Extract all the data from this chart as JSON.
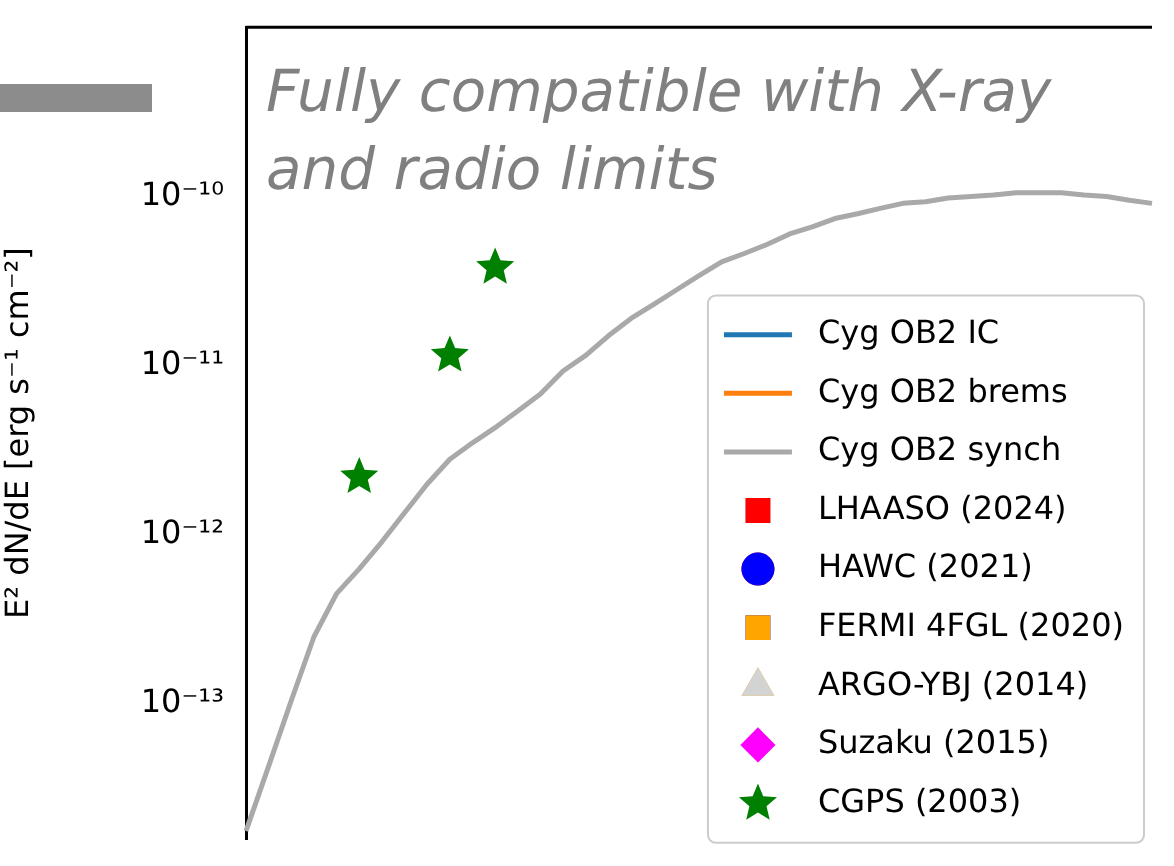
{
  "chart_data": {
    "type": "line",
    "ylabel": "E² dN/dE [erg s⁻¹ cm⁻²]",
    "annotations": [
      "Fully compatible with X-ray\nand radio limits"
    ],
    "categories": [
      null,
      null,
      null,
      null,
      null,
      null,
      null,
      null,
      null,
      null,
      null,
      null,
      null,
      null,
      null,
      null,
      null,
      null,
      null,
      null,
      null,
      null,
      null,
      null,
      null,
      null,
      null,
      null,
      null,
      null,
      null,
      null,
      null,
      null,
      null,
      null,
      null,
      null,
      null,
      null,
      null
    ],
    "log": "y",
    "ylim": [
      1.6e-14,
      1e-09
    ],
    "yticks": [
      {
        "value": 1e-13,
        "label": "10⁻¹³"
      },
      {
        "value": 1e-12,
        "label": "10⁻¹²"
      },
      {
        "value": 1e-11,
        "label": "10⁻¹¹"
      },
      {
        "value": 1e-10,
        "label": "10⁻¹⁰"
      }
    ],
    "tick_labels": "y",
    "grid": false,
    "legend": "bottom right",
    "series": [
      {
        "name": "Cyg OB2 IC",
        "color": "#1f77b4",
        "values": [
          null,
          null,
          null,
          null,
          null,
          null,
          null,
          null,
          null,
          null,
          null,
          null,
          null,
          null,
          null,
          null,
          null,
          null,
          null,
          null,
          null,
          null,
          null,
          null,
          null,
          null,
          null,
          null,
          null,
          null,
          null,
          null,
          null,
          null,
          null,
          null,
          null,
          null,
          null,
          null,
          null
        ]
      },
      {
        "name": "Cyg OB2 brems",
        "color": "#ff7f0e",
        "values": [
          null,
          null,
          null,
          null,
          null,
          null,
          null,
          null,
          null,
          null,
          null,
          null,
          null,
          null,
          null,
          null,
          null,
          null,
          null,
          null,
          null,
          null,
          null,
          null,
          null,
          null,
          null,
          null,
          null,
          null,
          null,
          null,
          null,
          null,
          null,
          null,
          null,
          null,
          null,
          null,
          null
        ]
      },
      {
        "name": "Cyg OB2 synch",
        "color": "#a9a9a9",
        "values": [
          1.78e-14,
          4.3e-14,
          1.05e-13,
          2.5e-13,
          4.5e-13,
          6.3e-13,
          9.1e-13,
          1.35e-12,
          2e-12,
          2.8e-12,
          3.5e-12,
          4.3e-12,
          5.4e-12,
          6.8e-12,
          9.3e-12,
          1.15e-11,
          1.5e-11,
          1.9e-11,
          2.3e-11,
          2.8e-11,
          3.4e-11,
          4.1e-11,
          4.6e-11,
          5.2e-11,
          6e-11,
          6.6e-11,
          7.4e-11,
          7.9e-11,
          8.5e-11,
          9.1e-11,
          9.3e-11,
          9.8e-11,
          1e-10,
          1.02e-10,
          1.05e-10,
          1.05e-10,
          1.05e-10,
          1.02e-10,
          1e-10,
          9.5e-11,
          9.1e-11
        ]
      },
      {
        "name": "LHAASO (2024)",
        "type": "scatter",
        "marker": "square",
        "color": "#ff0000",
        "values": [
          null,
          null,
          null,
          null,
          null,
          null,
          null,
          null,
          null,
          null,
          null,
          null,
          null,
          null,
          null,
          null,
          null,
          null,
          null,
          null,
          null,
          null,
          null,
          null,
          null,
          null,
          null,
          null,
          null,
          null,
          null,
          null,
          null,
          null,
          null,
          null,
          null,
          null,
          null,
          null,
          null
        ]
      },
      {
        "name": "HAWC (2021)",
        "type": "scatter",
        "marker": "circle",
        "color": "#0000ff",
        "values": [
          null,
          null,
          null,
          null,
          null,
          null,
          null,
          null,
          null,
          null,
          null,
          null,
          null,
          null,
          null,
          null,
          null,
          null,
          null,
          null,
          null,
          null,
          null,
          null,
          null,
          null,
          null,
          null,
          null,
          null,
          null,
          null,
          null,
          null,
          null,
          null,
          null,
          null,
          null,
          null,
          null
        ]
      },
      {
        "name": "FERMI 4FGL (2020)",
        "type": "scatter",
        "marker": "square",
        "color": "#ffa500",
        "values": [
          null,
          null,
          null,
          null,
          null,
          null,
          null,
          null,
          null,
          null,
          null,
          null,
          null,
          null,
          null,
          null,
          null,
          null,
          null,
          null,
          null,
          null,
          null,
          null,
          null,
          null,
          null,
          null,
          null,
          null,
          null,
          null,
          null,
          null,
          null,
          null,
          null,
          null,
          null,
          null,
          null
        ]
      },
      {
        "name": "ARGO-YBJ (2014)",
        "type": "scatter",
        "marker": "triangle",
        "color": "#d3d3d3",
        "values": [
          null,
          null,
          null,
          null,
          null,
          null,
          null,
          null,
          null,
          null,
          null,
          null,
          null,
          null,
          null,
          null,
          null,
          null,
          null,
          null,
          null,
          null,
          null,
          null,
          null,
          null,
          null,
          null,
          null,
          null,
          null,
          null,
          null,
          null,
          null,
          null,
          null,
          null,
          null,
          null,
          null
        ]
      },
      {
        "name": "Suzaku (2015)",
        "type": "scatter",
        "marker": "diamond",
        "color": "#ff00ff",
        "values": [
          null,
          null,
          null,
          null,
          null,
          null,
          null,
          null,
          null,
          null,
          null,
          null,
          null,
          null,
          null,
          null,
          null,
          null,
          null,
          null,
          null,
          null,
          null,
          null,
          null,
          null,
          null,
          null,
          null,
          null,
          null,
          null,
          null,
          null,
          null,
          null,
          null,
          null,
          null,
          null,
          null
        ]
      },
      {
        "name": "CGPS (2003)",
        "type": "scatter",
        "marker": "star",
        "color": "#008000",
        "values": [
          null,
          null,
          null,
          null,
          null,
          2.2e-12,
          null,
          null,
          null,
          1.15e-11,
          null,
          3.8e-11,
          null,
          null,
          null,
          null,
          null,
          null,
          null,
          null,
          null,
          null,
          null,
          null,
          null,
          null,
          null,
          null,
          null,
          null,
          null,
          null,
          null,
          null,
          null,
          null,
          null,
          null,
          null,
          null,
          null
        ]
      }
    ]
  }
}
